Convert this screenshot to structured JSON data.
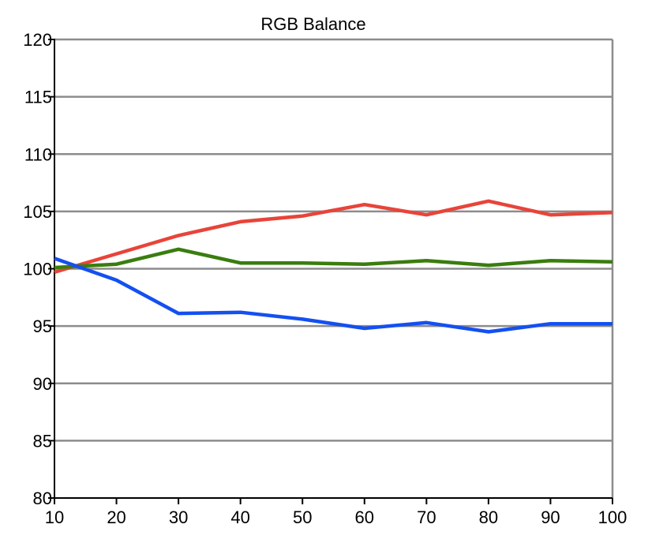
{
  "chart_data": {
    "type": "line",
    "title": "RGB Balance",
    "xlabel": "",
    "ylabel": "",
    "x": [
      10,
      20,
      30,
      40,
      50,
      60,
      70,
      80,
      90,
      100
    ],
    "xlim": [
      10,
      100
    ],
    "ylim": [
      80,
      120
    ],
    "x_ticks": [
      10,
      20,
      30,
      40,
      50,
      60,
      70,
      80,
      90,
      100
    ],
    "y_ticks": [
      80,
      85,
      90,
      95,
      100,
      105,
      110,
      115,
      120
    ],
    "grid": true,
    "legend": "none",
    "series": [
      {
        "name": "Red",
        "color": "#e8443a",
        "values": [
          99.7,
          101.3,
          102.9,
          104.1,
          104.6,
          105.6,
          104.7,
          105.9,
          104.7,
          104.9
        ]
      },
      {
        "name": "Green",
        "color": "#3a7d0f",
        "values": [
          100.1,
          100.4,
          101.7,
          100.5,
          100.5,
          100.4,
          100.7,
          100.3,
          100.7,
          100.6
        ]
      },
      {
        "name": "Blue",
        "color": "#1450f0",
        "values": [
          100.9,
          99.0,
          96.1,
          96.2,
          95.6,
          94.8,
          95.3,
          94.5,
          95.2,
          95.2
        ]
      }
    ]
  }
}
